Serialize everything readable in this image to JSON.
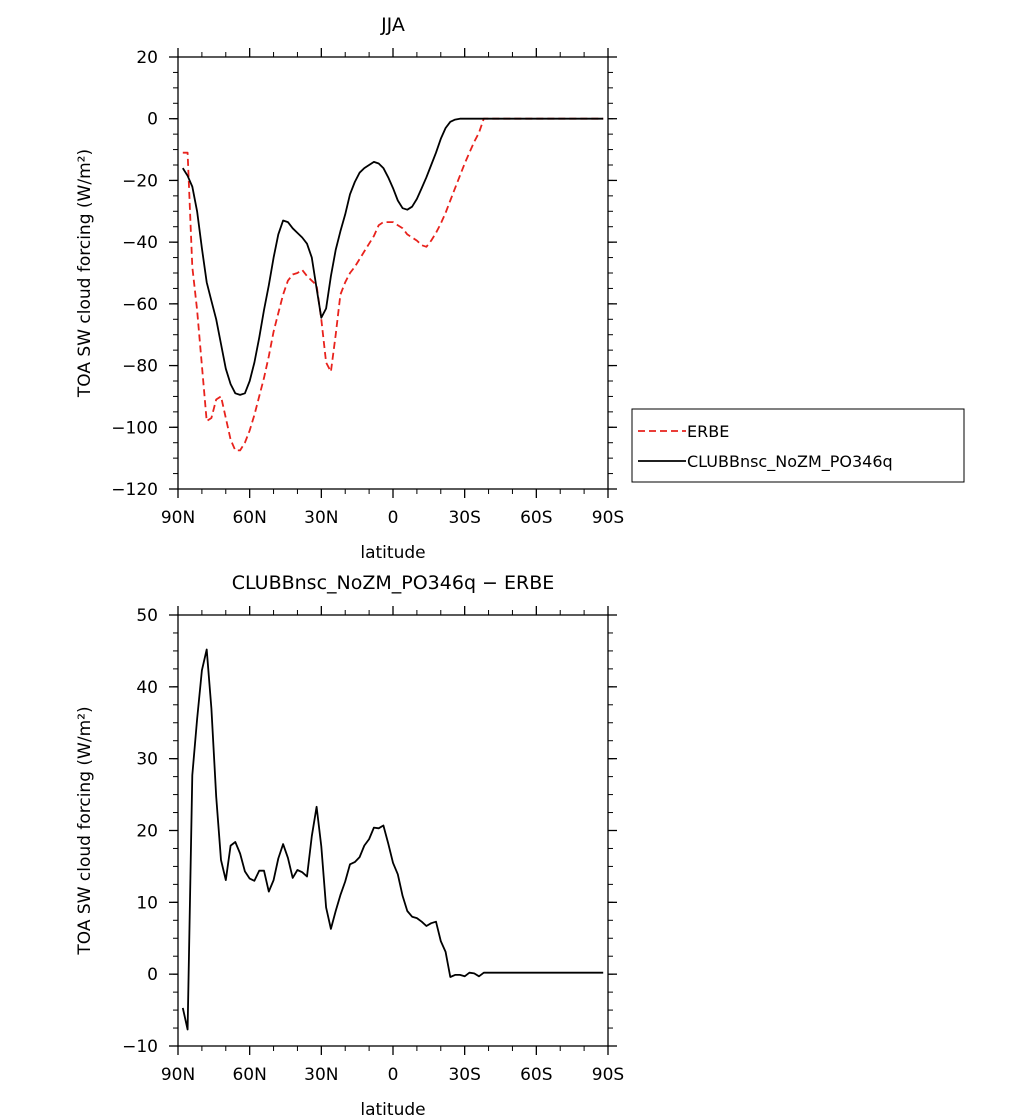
{
  "chart_data": [
    {
      "type": "line",
      "title": "JJA",
      "xlabel": "latitude",
      "ylabel": "TOA SW cloud forcing (W/m²)",
      "xlim": [
        90,
        -90
      ],
      "ylim": [
        -120,
        20
      ],
      "x_tick_values": [
        90,
        60,
        30,
        0,
        -30,
        -60,
        -90
      ],
      "x_tick_labels": [
        "90N",
        "60N",
        "30N",
        "0",
        "30S",
        "60S",
        "90S"
      ],
      "y_tick_values": [
        -120,
        -100,
        -80,
        -60,
        -40,
        -20,
        0,
        20
      ],
      "y_tick_labels": [
        "−120",
        "−100",
        "−80",
        "−60",
        "−40",
        "−20",
        "0",
        "20"
      ],
      "legend_position": "right",
      "series": [
        {
          "name": "ERBE",
          "color": "#e8221c",
          "style": "dashed",
          "x": [
            88,
            86,
            84,
            82,
            80,
            78,
            76,
            74,
            72,
            70,
            68,
            66,
            64,
            62,
            60,
            58,
            56,
            54,
            52,
            50,
            48,
            46,
            44,
            42,
            40,
            38,
            36,
            34,
            32,
            30,
            28,
            26,
            24,
            22,
            20,
            18,
            16,
            14,
            12,
            10,
            8,
            6,
            4,
            2,
            0,
            -2,
            -4,
            -6,
            -8,
            -10,
            -12,
            -14,
            -16,
            -18,
            -20,
            -22,
            -24,
            -26,
            -28,
            -30,
            -32,
            -34,
            -36,
            -38,
            -40,
            -42,
            -44,
            -46,
            -48,
            -50,
            -52,
            -54,
            -56,
            -58,
            -60,
            -62,
            -64,
            -66,
            -68,
            -70,
            -72,
            -74,
            -76,
            -78,
            -80,
            -82,
            -84,
            -86,
            -88
          ],
          "values": [
            -11,
            -11,
            -48,
            -62,
            -80,
            -98,
            -97,
            -91,
            -90,
            -97,
            -104,
            -107.5,
            -107.5,
            -105,
            -101,
            -96,
            -90,
            -84,
            -77,
            -69,
            -63,
            -57,
            -52.5,
            -50.5,
            -50,
            -49,
            -51,
            -52.5,
            -54,
            -65,
            -79,
            -82,
            -70,
            -57,
            -53,
            -50,
            -48,
            -45.5,
            -43,
            -40.5,
            -38,
            -34.5,
            -33.5,
            -33.5,
            -33.5,
            -34.5,
            -35.5,
            -37.5,
            -38.5,
            -39.5,
            -41,
            -41.5,
            -39.5,
            -37,
            -34,
            -30.5,
            -26.5,
            -22.5,
            -18.5,
            -14.5,
            -11,
            -7.5,
            -4.5,
            0,
            0,
            0,
            0,
            0,
            0,
            0,
            0,
            0,
            0,
            0,
            0,
            0,
            0,
            0,
            0,
            0,
            0,
            0,
            0,
            0,
            0,
            0,
            0,
            0,
            0
          ]
        },
        {
          "name": "CLUBBnsc_NoZM_PO346q",
          "color": "#000000",
          "style": "solid",
          "x": [
            88,
            86,
            84,
            82,
            80,
            78,
            76,
            74,
            72,
            70,
            68,
            66,
            64,
            62,
            60,
            58,
            56,
            54,
            52,
            50,
            48,
            46,
            44,
            42,
            40,
            38,
            36,
            34,
            32,
            30,
            28,
            26,
            24,
            22,
            20,
            18,
            16,
            14,
            12,
            10,
            8,
            6,
            4,
            2,
            0,
            -2,
            -4,
            -6,
            -8,
            -10,
            -12,
            -14,
            -16,
            -18,
            -20,
            -22,
            -24,
            -26,
            -28,
            -30,
            -32,
            -34,
            -36,
            -38,
            -40,
            -42,
            -44,
            -46,
            -48,
            -50,
            -52,
            -54,
            -56,
            -58,
            -60,
            -62,
            -64,
            -66,
            -68,
            -70,
            -72,
            -74,
            -76,
            -78,
            -80,
            -82,
            -84,
            -86,
            -88
          ],
          "values": [
            -16,
            -18.5,
            -22,
            -30,
            -42,
            -53,
            -59,
            -65,
            -73,
            -81,
            -86,
            -89,
            -89.5,
            -89,
            -85,
            -79,
            -71,
            -62,
            -54,
            -45,
            -37.5,
            -33,
            -33.5,
            -35.5,
            -37,
            -38.5,
            -40.5,
            -45,
            -55,
            -64.5,
            -61.5,
            -51,
            -42.5,
            -36.5,
            -31,
            -24.5,
            -20.5,
            -17.5,
            -16,
            -15,
            -14,
            -14.5,
            -16,
            -19,
            -22.5,
            -26.5,
            -29,
            -29.5,
            -28.5,
            -26,
            -22.5,
            -19,
            -15,
            -11,
            -6.5,
            -3,
            -1,
            -0.3,
            0,
            0,
            0,
            0,
            0,
            0,
            0,
            0,
            0,
            0,
            0,
            0,
            0,
            0,
            0,
            0,
            0,
            0,
            0,
            0,
            0,
            0,
            0,
            0,
            0,
            0,
            0,
            0,
            0,
            0,
            0
          ]
        }
      ]
    },
    {
      "type": "line",
      "title": "CLUBBnsc_NoZM_PO346q − ERBE",
      "xlabel": "latitude",
      "ylabel": "TOA SW cloud forcing (W/m²)",
      "xlim": [
        90,
        -90
      ],
      "ylim": [
        -10,
        50
      ],
      "x_tick_values": [
        90,
        60,
        30,
        0,
        -30,
        -60,
        -90
      ],
      "x_tick_labels": [
        "90N",
        "60N",
        "30N",
        "0",
        "30S",
        "60S",
        "90S"
      ],
      "y_tick_values": [
        -10,
        0,
        10,
        20,
        30,
        40,
        50
      ],
      "y_tick_labels": [
        "−10",
        "0",
        "10",
        "20",
        "30",
        "40",
        "50"
      ],
      "series": [
        {
          "color": "#000000",
          "style": "solid",
          "x": [
            88,
            86,
            84,
            82,
            80,
            78,
            76,
            74,
            72,
            70,
            68,
            66,
            64,
            62,
            60,
            58,
            56,
            54,
            52,
            50,
            48,
            46,
            44,
            42,
            40,
            38,
            36,
            34,
            32,
            30,
            28,
            26,
            24,
            22,
            20,
            18,
            16,
            14,
            12,
            10,
            8,
            6,
            4,
            2,
            0,
            -2,
            -4,
            -6,
            -8,
            -10,
            -12,
            -14,
            -16,
            -18,
            -20,
            -22,
            -24,
            -26,
            -28,
            -30,
            -32,
            -34,
            -36,
            -38,
            -40,
            -42,
            -44,
            -46,
            -48,
            -50,
            -52,
            -54,
            -56,
            -58,
            -60,
            -62,
            -64,
            -66,
            -68,
            -70,
            -72,
            -74,
            -76,
            -78,
            -80,
            -82,
            -84,
            -86,
            -88
          ],
          "values": [
            -4.7,
            -7.7,
            27.7,
            35.5,
            42.3,
            45.2,
            37,
            24.7,
            15.9,
            13.1,
            17.9,
            18.4,
            16.8,
            14.3,
            13.3,
            13,
            14.4,
            14.4,
            11.5,
            13.1,
            16.1,
            18.1,
            16.2,
            13.4,
            14.5,
            14.2,
            13.6,
            19.2,
            23.3,
            17.8,
            9.3,
            6.3,
            8.8,
            11,
            12.9,
            15.3,
            15.6,
            16.3,
            17.9,
            18.8,
            20.4,
            20.3,
            20.7,
            18.2,
            15.5,
            13.9,
            10.9,
            8.8,
            8,
            7.8,
            7.3,
            6.7,
            7.1,
            7.3,
            4.6,
            3.1,
            -0.4,
            -0.1,
            -0.1,
            -0.3,
            0.2,
            0.1,
            -0.3,
            0.2,
            0.2,
            0.2,
            0.2,
            0.2,
            0.2,
            0.2,
            0.2,
            0.2,
            0.2,
            0.2,
            0.2,
            0.2,
            0.2,
            0.2,
            0.2,
            0.2,
            0.2,
            0.2,
            0.2,
            0.2,
            0.2,
            0.2,
            0.2,
            0.2,
            0.2
          ]
        }
      ]
    }
  ]
}
